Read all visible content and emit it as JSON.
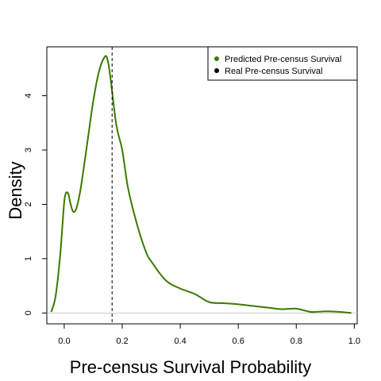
{
  "chart_data": {
    "type": "line",
    "title": "",
    "xlabel": "Pre-census Survival Probability",
    "ylabel": "Density",
    "xlim": [
      -0.06,
      1.01
    ],
    "ylim": [
      -0.2,
      4.9
    ],
    "xticks": [
      0.0,
      0.2,
      0.4,
      0.6,
      0.8,
      1.0
    ],
    "xtick_labels": [
      "0.0",
      "0.2",
      "0.4",
      "0.6",
      "0.8",
      "1.0"
    ],
    "yticks": [
      0,
      1,
      2,
      3,
      4
    ],
    "ytick_labels": [
      "0",
      "1",
      "2",
      "3",
      "4"
    ],
    "grid": false,
    "legend_position": "top-right",
    "legend": [
      {
        "label": "Predicted Pre-census Survival",
        "color": "#3a7a00"
      },
      {
        "label": "Real Pre-census Survival",
        "color": "#000000"
      }
    ],
    "series": [
      {
        "name": "Predicted Pre-census Survival",
        "color": "#3a7a00",
        "x": [
          -0.045,
          -0.03,
          -0.015,
          -0.005,
          0.0,
          0.005,
          0.01,
          0.015,
          0.02,
          0.03,
          0.04,
          0.05,
          0.06,
          0.08,
          0.1,
          0.12,
          0.14,
          0.15,
          0.16,
          0.18,
          0.2,
          0.22,
          0.25,
          0.28,
          0.3,
          0.35,
          0.4,
          0.45,
          0.5,
          0.55,
          0.6,
          0.65,
          0.7,
          0.75,
          0.8,
          0.85,
          0.9,
          0.95,
          0.99
        ],
        "y": [
          0.02,
          0.3,
          1.0,
          1.7,
          2.05,
          2.2,
          2.22,
          2.18,
          2.05,
          1.87,
          1.9,
          2.1,
          2.4,
          3.15,
          3.9,
          4.45,
          4.72,
          4.65,
          4.3,
          3.45,
          3.0,
          2.3,
          1.65,
          1.15,
          0.95,
          0.6,
          0.45,
          0.35,
          0.2,
          0.18,
          0.16,
          0.13,
          0.1,
          0.07,
          0.08,
          0.02,
          0.03,
          0.02,
          0.0
        ]
      }
    ],
    "vline": {
      "x": 0.165,
      "style": "dashed",
      "color": "#000000"
    }
  }
}
